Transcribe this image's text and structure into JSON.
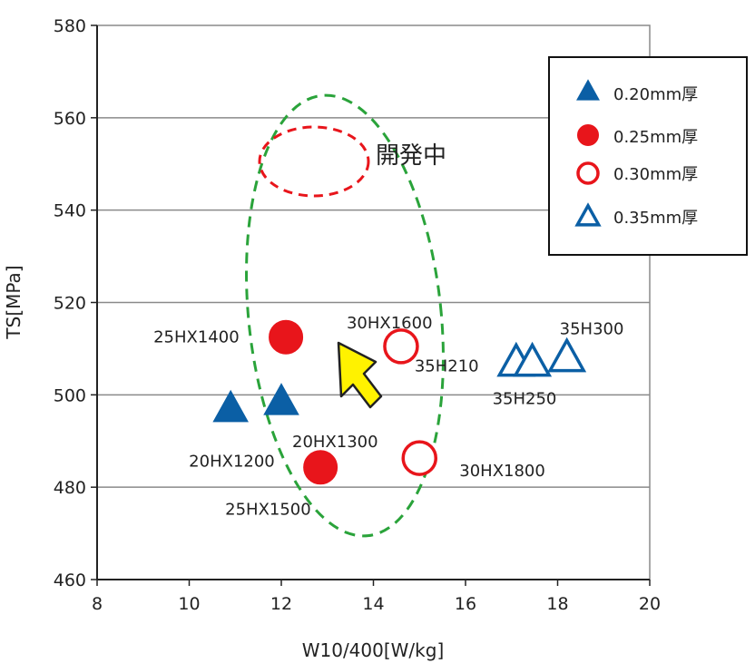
{
  "chart_data": {
    "type": "scatter",
    "xlabel": "W10/400[W/kg]",
    "ylabel": "TS[MPa]",
    "xlim": [
      8,
      20
    ],
    "ylim": [
      460,
      580
    ],
    "x_ticks": [
      "8",
      "10",
      "12",
      "14",
      "16",
      "18",
      "20"
    ],
    "y_ticks": [
      "460",
      "480",
      "500",
      "520",
      "540",
      "560",
      "580"
    ],
    "grid": "horizontal",
    "legend_position": "top-right",
    "series": [
      {
        "name": "0.20mm厚",
        "marker": "triangle",
        "filled": true,
        "color": "#0b5fa5",
        "points": [
          {
            "x": 10.9,
            "y": 497,
            "label": "20HX1200"
          },
          {
            "x": 12.0,
            "y": 498.5,
            "label": "20HX1300"
          }
        ]
      },
      {
        "name": "0.25mm厚",
        "marker": "circle",
        "filled": true,
        "color": "#e8151b",
        "points": [
          {
            "x": 12.1,
            "y": 512.5,
            "label": "25HX1400"
          },
          {
            "x": 12.85,
            "y": 484.3,
            "label": "25HX1500"
          }
        ]
      },
      {
        "name": "0.30mm厚",
        "marker": "circle",
        "filled": false,
        "color": "#e8151b",
        "points": [
          {
            "x": 14.6,
            "y": 510.5,
            "label": "30HX1600"
          },
          {
            "x": 15.0,
            "y": 486.3,
            "label": "30HX1800"
          }
        ]
      },
      {
        "name": "0.35mm厚",
        "marker": "triangle",
        "filled": false,
        "color": "#0b5fa5",
        "points": [
          {
            "x": 17.1,
            "y": 507,
            "label": "35H210"
          },
          {
            "x": 17.45,
            "y": 507,
            "label": "35H250"
          },
          {
            "x": 18.2,
            "y": 508,
            "label": "35H300"
          }
        ]
      }
    ],
    "annotations": [
      {
        "text": "開発中"
      }
    ]
  }
}
